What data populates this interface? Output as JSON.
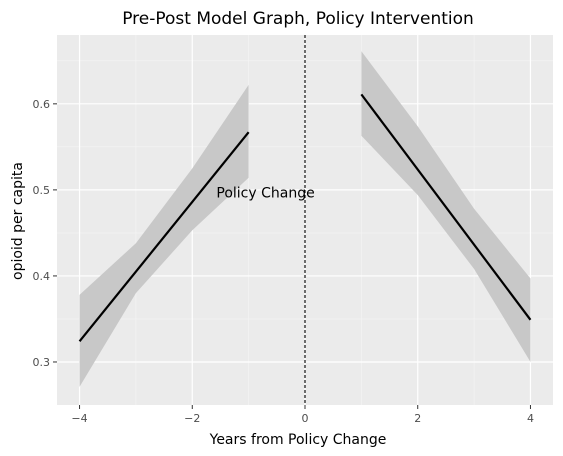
{
  "chart_data": {
    "type": "line",
    "title": "Pre-Post Model Graph, Policy Intervention",
    "xlabel": "Years from Policy Change",
    "ylabel": "opioid per capita",
    "xlim": [
      -4.4,
      4.4
    ],
    "ylim": [
      0.25,
      0.68
    ],
    "x_ticks": [
      -4,
      -2,
      0,
      2,
      4
    ],
    "y_ticks": [
      0.3,
      0.4,
      0.5,
      0.6
    ],
    "x_tick_labels": [
      "−4",
      "−2",
      "0",
      "2",
      "4"
    ],
    "y_tick_labels": [
      "0.3",
      "0.4",
      "0.5",
      "0.6"
    ],
    "grid": true,
    "series": [
      {
        "segment": "pre",
        "x": [
          -4,
          -1
        ],
        "y": [
          0.324,
          0.567
        ],
        "ribbon_x": [
          -4,
          -3,
          -2,
          -1
        ],
        "ribbon_lower": [
          0.271,
          0.38,
          0.453,
          0.514
        ],
        "ribbon_upper": [
          0.378,
          0.438,
          0.525,
          0.622
        ]
      },
      {
        "segment": "post",
        "x": [
          1,
          4
        ],
        "y": [
          0.611,
          0.349
        ],
        "ribbon_x": [
          1,
          2,
          3,
          4
        ],
        "ribbon_lower": [
          0.563,
          0.494,
          0.408,
          0.3
        ],
        "ribbon_upper": [
          0.661,
          0.574,
          0.478,
          0.397
        ]
      }
    ],
    "vline": {
      "x": 0,
      "style": "dashed"
    },
    "annotation": {
      "text": "Policy Change",
      "x": -0.7,
      "y": 0.497
    },
    "colors": {
      "panel": "#ebebeb",
      "grid_major": "#ffffff",
      "ribbon": "#c8c8c8",
      "line": "#000000"
    }
  }
}
